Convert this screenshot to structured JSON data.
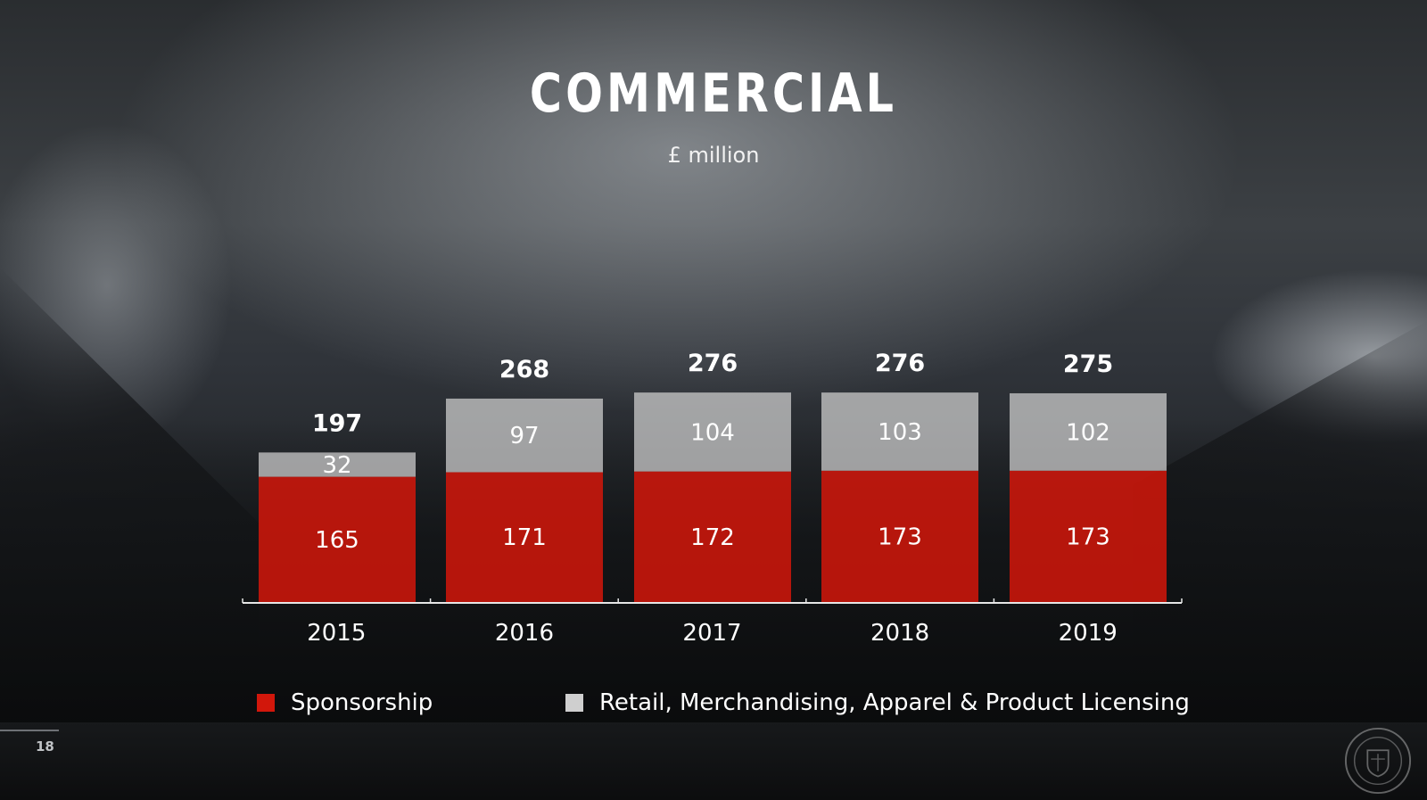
{
  "page": {
    "title": "COMMERCIAL",
    "subtitle": "£ million",
    "page_number": "18"
  },
  "colors": {
    "sponsorship": "#c8150a",
    "retail": "#cfcfcf",
    "background": "#1a1c1e"
  },
  "icons": {
    "crest": "manchester-united-crest-icon"
  },
  "chart_data": {
    "type": "bar",
    "stacked": true,
    "title": "COMMERCIAL",
    "subtitle": "£ million",
    "categories": [
      "2015",
      "2016",
      "2017",
      "2018",
      "2019"
    ],
    "series": [
      {
        "name": "Sponsorship",
        "values": [
          165,
          171,
          172,
          173,
          173
        ]
      },
      {
        "name": "Retail, Merchandising, Apparel & Product Licensing",
        "values": [
          32,
          97,
          104,
          103,
          102
        ]
      }
    ],
    "totals": [
      197,
      268,
      276,
      276,
      275
    ],
    "ylim": [
      0,
      300
    ],
    "grid": false,
    "legend_position": "bottom"
  }
}
